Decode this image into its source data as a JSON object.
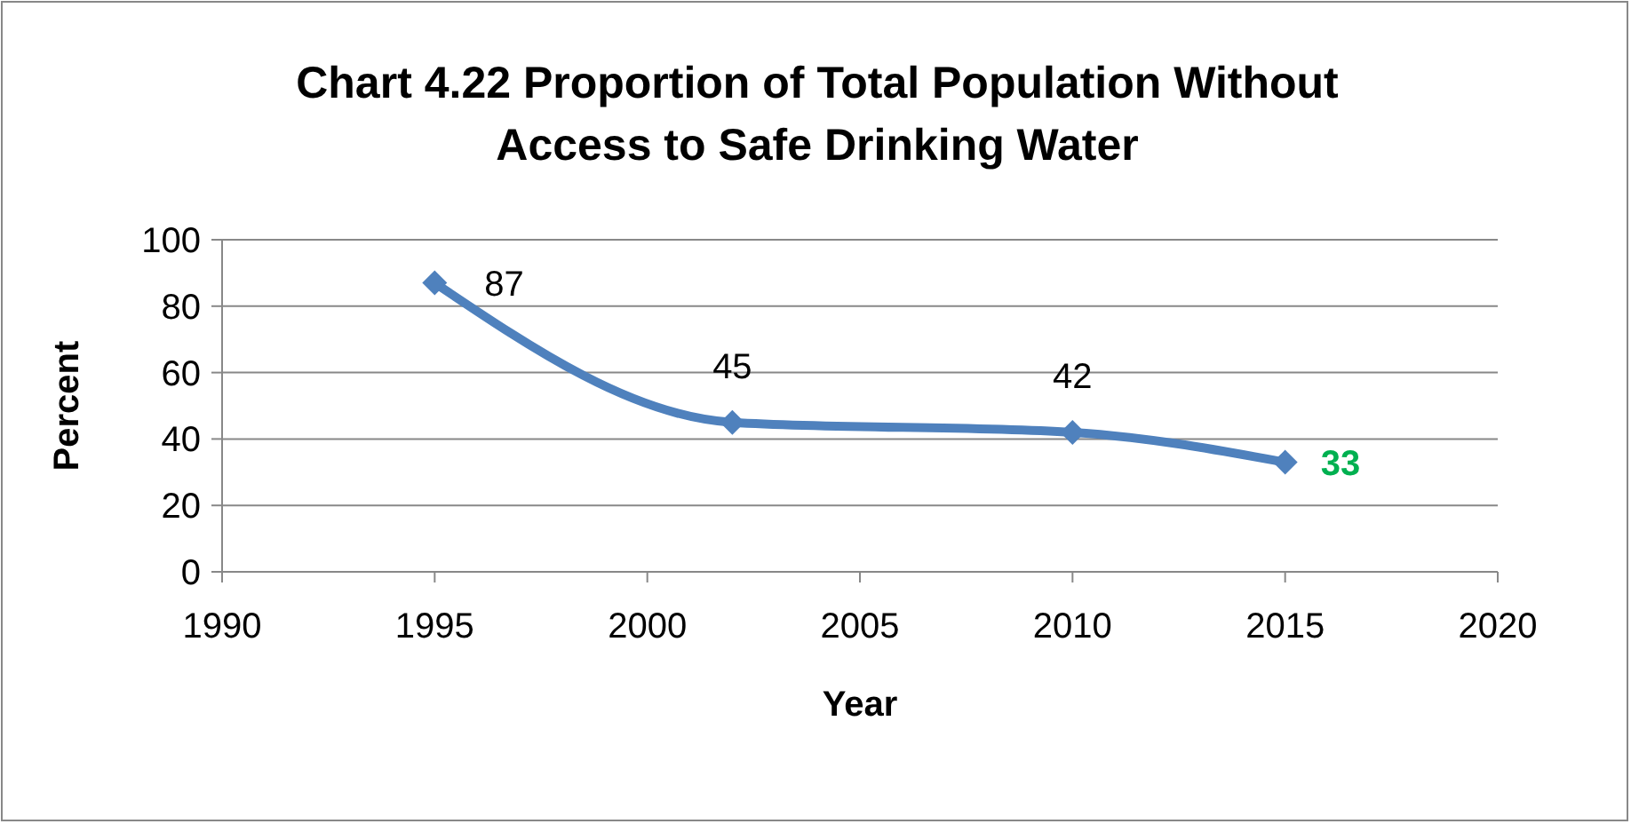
{
  "chart_data": {
    "type": "line",
    "title": "Chart 4.22 Proportion of Total Population Without Access to Safe Drinking Water",
    "xlabel": "Year",
    "ylabel": "Percent",
    "x": [
      1995,
      2002,
      2010,
      2015
    ],
    "series": [
      {
        "color": "#4f81bd",
        "values": [
          87,
          45,
          42,
          33
        ],
        "value_labels": [
          "87",
          "45",
          "42",
          null
        ]
      }
    ],
    "annotations": [
      {
        "text": "33",
        "x": 2015,
        "y": 33
      }
    ],
    "xlim": [
      1990,
      2020
    ],
    "xticks": [
      1990,
      1995,
      2000,
      2005,
      2010,
      2015,
      2020
    ],
    "ylim": [
      0,
      100
    ],
    "yticks": [
      0,
      20,
      40,
      60,
      80,
      100
    ],
    "grid": "y",
    "marker": "diamond",
    "line_style": "solid"
  }
}
